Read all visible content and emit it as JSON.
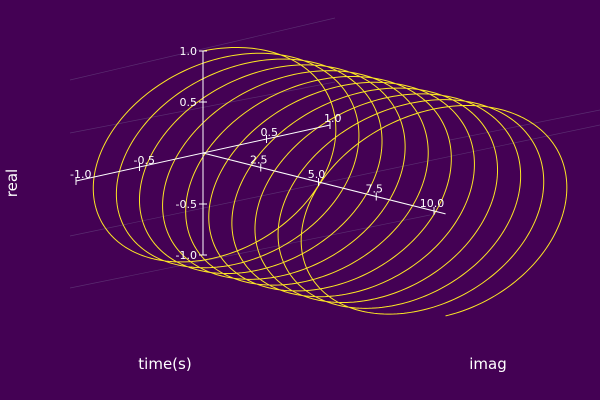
{
  "chart_data": {
    "type": "line3d",
    "title": "",
    "xlabel": "time(s)",
    "ylabel": "imag",
    "zlabel": "real",
    "xlim": [
      0,
      10.5
    ],
    "ylim": [
      -1,
      1
    ],
    "zlim": [
      -1,
      1
    ],
    "x_ticks": [
      "2.5",
      "5.0",
      "7.5",
      "10.0"
    ],
    "y_ticks": [
      "-1.0",
      "-0.5",
      "0.5",
      "1.0"
    ],
    "z_ticks": [
      "-1.0",
      "-0.5",
      "0.5",
      "1.0"
    ],
    "series": [
      {
        "x_expr": "t",
        "y_expr": "sin(2*pi*t)",
        "z_expr": "cos(2*pi*t)",
        "t_range": [
          0,
          10.5
        ],
        "samples": 2400
      }
    ],
    "grid": true,
    "legend": "none",
    "colors": {
      "background": "#440154",
      "line": "#fde725",
      "axis": "#ffffff",
      "grid": "#5a2c70"
    }
  }
}
